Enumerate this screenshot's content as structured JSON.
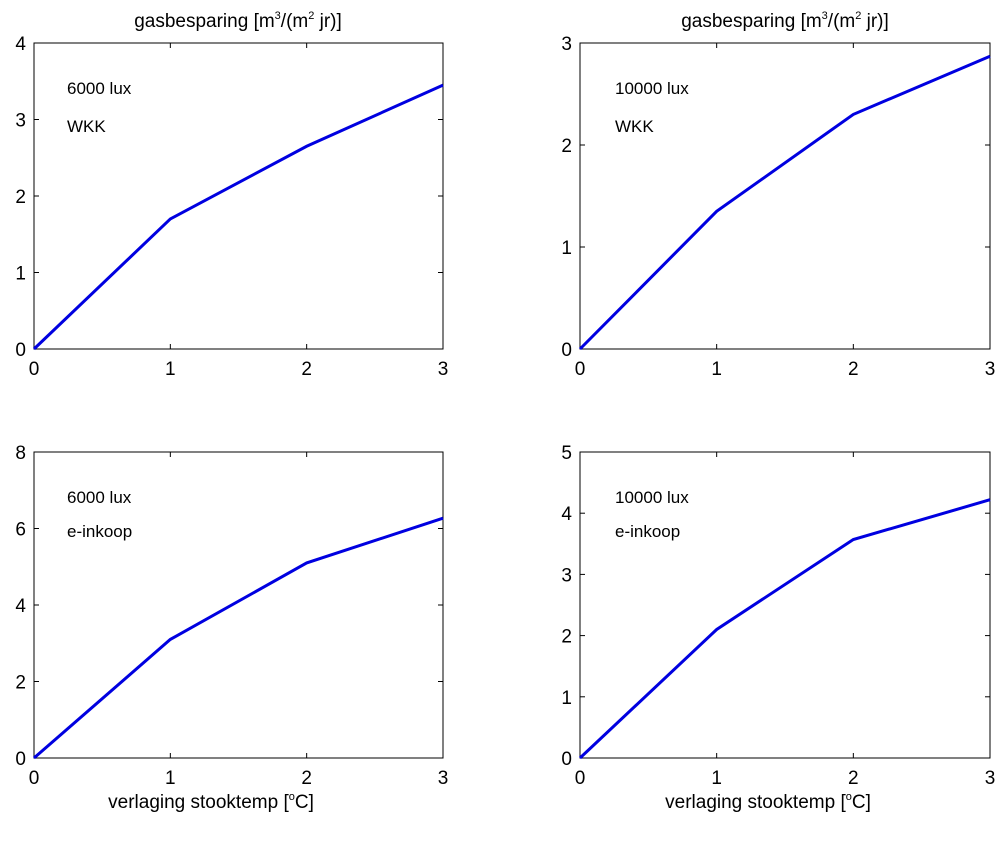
{
  "chart_data": [
    {
      "type": "line",
      "title": {
        "pre": "gasbesparing [m",
        "sup1": "3",
        "mid": "/(m",
        "sup2": "2",
        "post": " jr)]"
      },
      "xlabel": {
        "pre": "",
        "sup": "",
        "post": ""
      },
      "annotations": [
        "6000 lux",
        "WKK"
      ],
      "x": [
        0,
        1,
        2,
        3
      ],
      "series": [
        {
          "values": [
            0,
            1.7,
            2.65,
            3.45
          ],
          "color": "#0000e0"
        }
      ],
      "xlim": [
        0,
        3
      ],
      "ylim": [
        0,
        4
      ],
      "xticks": [
        "0",
        "1",
        "2",
        "3"
      ],
      "yticks": [
        "0",
        "1",
        "2",
        "3",
        "4"
      ],
      "grid": false
    },
    {
      "type": "line",
      "title": {
        "pre": "gasbesparing [m",
        "sup1": "3",
        "mid": "/(m",
        "sup2": "2",
        "post": " jr)]"
      },
      "xlabel": {
        "pre": "",
        "sup": "",
        "post": ""
      },
      "annotations": [
        "10000 lux",
        "WKK"
      ],
      "x": [
        0,
        1,
        2,
        3
      ],
      "series": [
        {
          "values": [
            0,
            1.35,
            2.3,
            2.87
          ],
          "color": "#0000e0"
        }
      ],
      "xlim": [
        0,
        3
      ],
      "ylim": [
        0,
        3
      ],
      "xticks": [
        "0",
        "1",
        "2",
        "3"
      ],
      "yticks": [
        "0",
        "1",
        "2",
        "3"
      ],
      "grid": false
    },
    {
      "type": "line",
      "title": {
        "pre": "",
        "sup1": "",
        "mid": "",
        "sup2": "",
        "post": ""
      },
      "xlabel": {
        "pre": "verlaging stooktemp [",
        "sup": "o",
        "post": "C]"
      },
      "annotations": [
        "6000 lux",
        "e-inkoop"
      ],
      "x": [
        0,
        1,
        2,
        3
      ],
      "series": [
        {
          "values": [
            0,
            3.1,
            5.1,
            6.27
          ],
          "color": "#0000e0"
        }
      ],
      "xlim": [
        0,
        3
      ],
      "ylim": [
        0,
        8
      ],
      "xticks": [
        "0",
        "1",
        "2",
        "3"
      ],
      "yticks": [
        "0",
        "2",
        "4",
        "6",
        "8"
      ],
      "grid": false
    },
    {
      "type": "line",
      "title": {
        "pre": "",
        "sup1": "",
        "mid": "",
        "sup2": "",
        "post": ""
      },
      "xlabel": {
        "pre": "verlaging stooktemp [",
        "sup": "o",
        "post": "C]"
      },
      "annotations": [
        "10000 lux",
        "e-inkoop"
      ],
      "x": [
        0,
        1,
        2,
        3
      ],
      "series": [
        {
          "values": [
            0,
            2.1,
            3.57,
            4.22
          ],
          "color": "#0000e0"
        }
      ],
      "xlim": [
        0,
        3
      ],
      "ylim": [
        0,
        5
      ],
      "xticks": [
        "0",
        "1",
        "2",
        "3"
      ],
      "yticks": [
        "0",
        "1",
        "2",
        "3",
        "4",
        "5"
      ],
      "grid": false
    }
  ]
}
